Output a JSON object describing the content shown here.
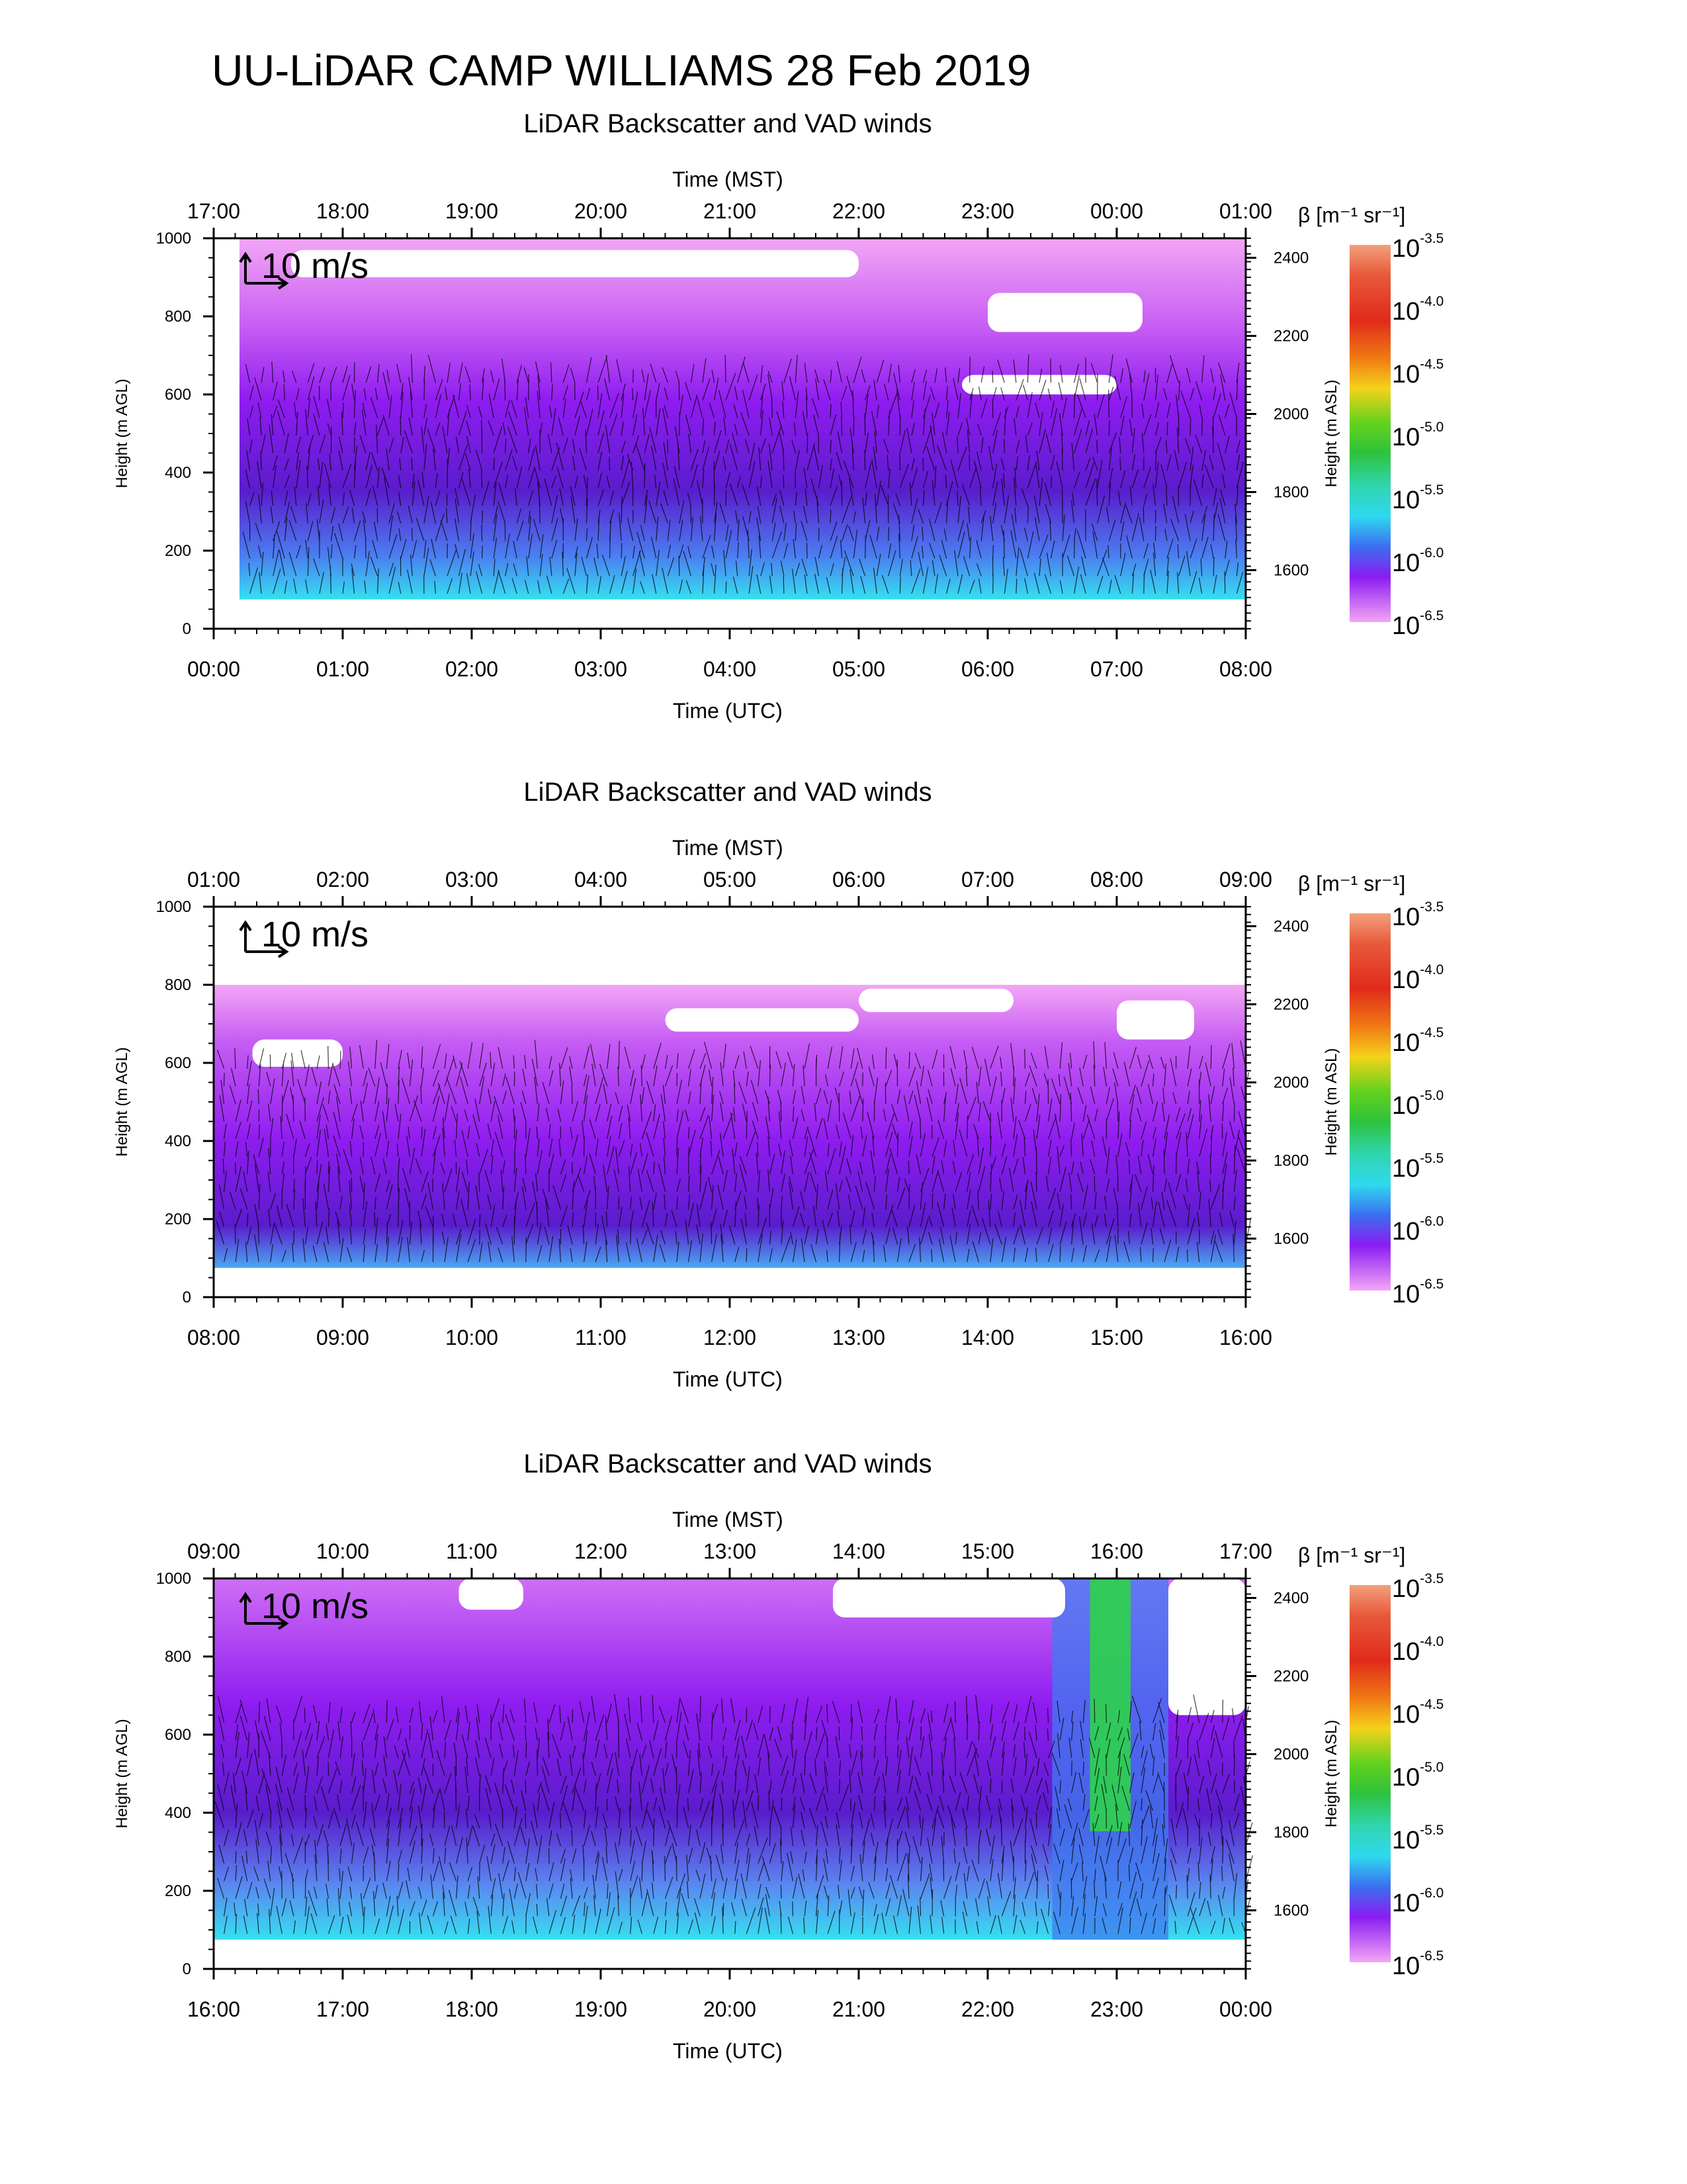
{
  "title": "UU-LiDAR CAMP WILLIAMS 28 Feb 2019",
  "colors": {
    "backscatter_low": "#f3a6f5",
    "backscatter_mid": "#8f1cf0",
    "backscatter_dark": "#5a1ccc",
    "backscatter_cyan": "#35e0f0",
    "backscatter_green": "#2ed34a",
    "background": "#ffffff"
  },
  "chart_data": [
    {
      "type": "heatmap",
      "title": "LiDAR Backscatter and VAD winds",
      "xlabel": "Time (UTC)",
      "x2label": "Time (MST)",
      "ylabel": "Height (m AGL)",
      "y2label": "Height (m ASL)",
      "x_ticks": [
        "00:00",
        "01:00",
        "02:00",
        "03:00",
        "04:00",
        "05:00",
        "06:00",
        "07:00",
        "08:00"
      ],
      "x2_ticks": [
        "17:00",
        "18:00",
        "19:00",
        "20:00",
        "21:00",
        "22:00",
        "23:00",
        "00:00",
        "01:00"
      ],
      "y_ticks": [
        0,
        200,
        400,
        600,
        800,
        1000
      ],
      "y2_ticks": [
        1600,
        1800,
        2000,
        2200,
        2400
      ],
      "ylim": [
        0,
        1000
      ],
      "y2lim": [
        1450,
        2450
      ],
      "wind_scale_label": "10 m/s",
      "colorbar_label": "β [m⁻¹ sr⁻¹]",
      "colorbar_ticks": [
        "10^-3.5",
        "10^-4.0",
        "10^-4.5",
        "10^-5.0",
        "10^-5.5",
        "10^-6.0",
        "10^-6.5"
      ],
      "data_coverage": {
        "x_range_hours": [
          0.2,
          8.0
        ],
        "y_range_m": [
          75,
          1000
        ]
      },
      "layers": [
        {
          "y_range": [
            75,
            250
          ],
          "level": "10^-6.0 to 10^-5.5"
        },
        {
          "y_range": [
            250,
            600
          ],
          "level": "10^-6.2"
        },
        {
          "y_range": [
            600,
            900
          ],
          "level": "10^-6.5"
        },
        {
          "y_range": [
            900,
            1000
          ],
          "level": "10^-6.5"
        }
      ],
      "no_data_patches": [
        {
          "x_hours": [
            5.8,
            7.0
          ],
          "y_m": [
            600,
            650
          ]
        },
        {
          "x_hours": [
            6.0,
            7.2
          ],
          "y_m": [
            760,
            860
          ]
        },
        {
          "x_hours": [
            0.6,
            5.0
          ],
          "y_m": [
            900,
            970
          ]
        }
      ]
    },
    {
      "type": "heatmap",
      "title": "LiDAR Backscatter and VAD winds",
      "xlabel": "Time (UTC)",
      "x2label": "Time (MST)",
      "ylabel": "Height (m AGL)",
      "y2label": "Height (m ASL)",
      "x_ticks": [
        "08:00",
        "09:00",
        "10:00",
        "11:00",
        "12:00",
        "13:00",
        "14:00",
        "15:00",
        "16:00"
      ],
      "x2_ticks": [
        "01:00",
        "02:00",
        "03:00",
        "04:00",
        "05:00",
        "06:00",
        "07:00",
        "08:00",
        "09:00"
      ],
      "y_ticks": [
        0,
        200,
        400,
        600,
        800,
        1000
      ],
      "y2_ticks": [
        1600,
        1800,
        2000,
        2200,
        2400
      ],
      "ylim": [
        0,
        1000
      ],
      "y2lim": [
        1450,
        2450
      ],
      "wind_scale_label": "10 m/s",
      "colorbar_label": "β [m⁻¹ sr⁻¹]",
      "colorbar_ticks": [
        "10^-3.5",
        "10^-4.0",
        "10^-4.5",
        "10^-5.0",
        "10^-5.5",
        "10^-6.0",
        "10^-6.5"
      ],
      "data_coverage": {
        "x_range_hours": [
          0.0,
          8.0
        ],
        "y_range_m": [
          75,
          800
        ]
      },
      "layers": [
        {
          "y_range": [
            75,
            250
          ],
          "level": "10^-6.0"
        },
        {
          "y_range": [
            250,
            600
          ],
          "level": "10^-6.2"
        },
        {
          "y_range": [
            600,
            800
          ],
          "level": "10^-6.5"
        }
      ],
      "no_data_patches": [
        {
          "x_hours": [
            0.3,
            1.0
          ],
          "y_m": [
            590,
            660
          ]
        },
        {
          "x_hours": [
            3.5,
            5.0
          ],
          "y_m": [
            680,
            740
          ]
        },
        {
          "x_hours": [
            5.0,
            6.2
          ],
          "y_m": [
            730,
            790
          ]
        },
        {
          "x_hours": [
            7.0,
            7.6
          ],
          "y_m": [
            660,
            760
          ]
        }
      ]
    },
    {
      "type": "heatmap",
      "title": "LiDAR Backscatter and VAD winds",
      "xlabel": "Time (UTC)",
      "x2label": "Time (MST)",
      "ylabel": "Height (m AGL)",
      "y2label": "Height (m ASL)",
      "x_ticks": [
        "16:00",
        "17:00",
        "18:00",
        "19:00",
        "20:00",
        "21:00",
        "22:00",
        "23:00",
        "00:00"
      ],
      "x2_ticks": [
        "09:00",
        "10:00",
        "11:00",
        "12:00",
        "13:00",
        "14:00",
        "15:00",
        "16:00",
        "17:00"
      ],
      "y_ticks": [
        0,
        200,
        400,
        600,
        800,
        1000
      ],
      "y2_ticks": [
        1600,
        1800,
        2000,
        2200,
        2400
      ],
      "ylim": [
        0,
        1000
      ],
      "y2lim": [
        1450,
        2450
      ],
      "wind_scale_label": "10 m/s",
      "colorbar_label": "β [m⁻¹ sr⁻¹]",
      "colorbar_ticks": [
        "10^-3.5",
        "10^-4.0",
        "10^-4.5",
        "10^-5.0",
        "10^-5.5",
        "10^-6.0",
        "10^-6.5"
      ],
      "data_coverage": {
        "x_range_hours": [
          0.0,
          8.0
        ],
        "y_range_m": [
          75,
          1000
        ]
      },
      "layers": [
        {
          "y_range": [
            75,
            300
          ],
          "level": "10^-6.0 to 10^-5.5"
        },
        {
          "y_range": [
            300,
            700
          ],
          "level": "10^-6.2"
        },
        {
          "y_range": [
            700,
            1000
          ],
          "level": "10^-6.5"
        }
      ],
      "features": [
        {
          "x_hours": [
            6.5,
            7.4
          ],
          "y_m": [
            75,
            1000
          ],
          "level": "10^-5.0",
          "note": "plume"
        }
      ],
      "no_data_patches": [
        {
          "x_hours": [
            1.9,
            2.4
          ],
          "y_m": [
            920,
            1000
          ]
        },
        {
          "x_hours": [
            4.8,
            6.6
          ],
          "y_m": [
            900,
            1000
          ]
        },
        {
          "x_hours": [
            7.4,
            8.0
          ],
          "y_m": [
            650,
            1000
          ]
        }
      ]
    }
  ]
}
